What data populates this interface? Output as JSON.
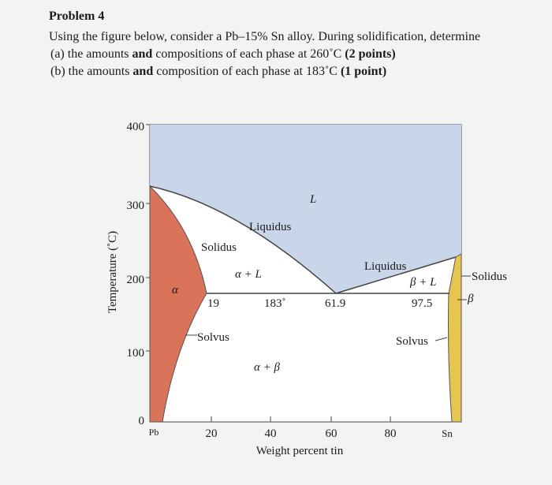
{
  "problem": {
    "title": "Problem 4",
    "intro": "Using the figure below, consider a Pb–15% Sn alloy. During solidification, determine",
    "parts": [
      [
        "(a) the amounts ",
        "and",
        " compositions of each phase at 260˚C ",
        "(2 points)"
      ],
      [
        "(b) the amounts ",
        "and",
        " composition of each phase at 183˚C ",
        "(1 point)"
      ]
    ]
  },
  "figure": {
    "y_axis_label": "Temperature (˚C)",
    "x_axis_label": "Weight percent tin",
    "y_ticks": [
      "400",
      "300",
      "200",
      "100",
      "0"
    ],
    "x_ticks": [
      "Pb",
      "20",
      "40",
      "60",
      "80",
      "Sn"
    ],
    "labels": {
      "liquid": "L",
      "liquidus_left": "Liquidus",
      "solidus_left": "Solidus",
      "alpha_l": "α + L",
      "alpha": "α",
      "alpha_limit": "19",
      "eutectic_temp": "183˚",
      "eutectic_comp": "61.9",
      "liquidus_right": "Liquidus",
      "beta_l": "β + L",
      "beta_limit": "97.5",
      "solvus_left": "Solvus",
      "solvus_right": "Solvus",
      "alpha_beta": "α + β",
      "solidus_right": "Solidus",
      "beta": "β"
    }
  }
}
